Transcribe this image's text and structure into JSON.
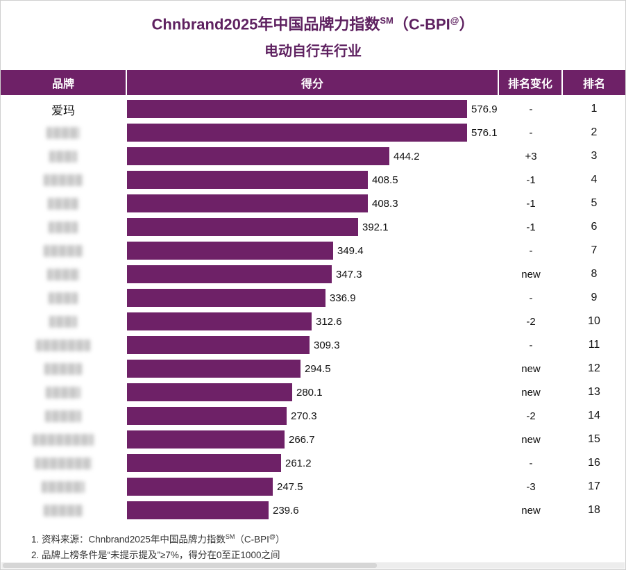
{
  "page": {
    "title_line1": {
      "text": "Chnbrand2025年中国品牌力指数",
      "sup1": "SM",
      "mid": "（C-BPI",
      "sup2": "@",
      "end": "）"
    },
    "title_line2": "电动自行车行业"
  },
  "table_headers": {
    "brand": "品牌",
    "score": "得分",
    "rank_change": "排名变化",
    "rank": "排名"
  },
  "chart_data": {
    "type": "bar",
    "orientation": "horizontal",
    "title": "Chnbrand2025年中国品牌力指数SM（C-BPI@） 电动自行车行业",
    "value_label": "得分",
    "xlim": [
      0,
      650
    ],
    "bar_color": "#6e2167",
    "rows": [
      {
        "brand": "爱玛",
        "redacted": false,
        "redacted_width": 0,
        "score": 576.9,
        "rank_change": "-",
        "rank": 1
      },
      {
        "brand": "",
        "redacted": true,
        "redacted_width": 48,
        "score": 576.1,
        "rank_change": "-",
        "rank": 2
      },
      {
        "brand": "",
        "redacted": true,
        "redacted_width": 40,
        "score": 444.2,
        "rank_change": "+3",
        "rank": 3
      },
      {
        "brand": "",
        "redacted": true,
        "redacted_width": 56,
        "score": 408.5,
        "rank_change": "-1",
        "rank": 4
      },
      {
        "brand": "",
        "redacted": true,
        "redacted_width": 44,
        "score": 408.3,
        "rank_change": "-1",
        "rank": 5
      },
      {
        "brand": "",
        "redacted": true,
        "redacted_width": 42,
        "score": 392.1,
        "rank_change": "-1",
        "rank": 6
      },
      {
        "brand": "",
        "redacted": true,
        "redacted_width": 56,
        "score": 349.4,
        "rank_change": "-",
        "rank": 7
      },
      {
        "brand": "",
        "redacted": true,
        "redacted_width": 46,
        "score": 347.3,
        "rank_change": "new",
        "rank": 8
      },
      {
        "brand": "",
        "redacted": true,
        "redacted_width": 42,
        "score": 336.9,
        "rank_change": "-",
        "rank": 9
      },
      {
        "brand": "",
        "redacted": true,
        "redacted_width": 40,
        "score": 312.6,
        "rank_change": "-2",
        "rank": 10
      },
      {
        "brand": "",
        "redacted": true,
        "redacted_width": 78,
        "score": 309.3,
        "rank_change": "-",
        "rank": 11
      },
      {
        "brand": "",
        "redacted": true,
        "redacted_width": 54,
        "score": 294.5,
        "rank_change": "new",
        "rank": 12
      },
      {
        "brand": "",
        "redacted": true,
        "redacted_width": 50,
        "score": 280.1,
        "rank_change": "new",
        "rank": 13
      },
      {
        "brand": "",
        "redacted": true,
        "redacted_width": 52,
        "score": 270.3,
        "rank_change": "-2",
        "rank": 14
      },
      {
        "brand": "",
        "redacted": true,
        "redacted_width": 88,
        "score": 266.7,
        "rank_change": "new",
        "rank": 15
      },
      {
        "brand": "",
        "redacted": true,
        "redacted_width": 82,
        "score": 261.2,
        "rank_change": "-",
        "rank": 16
      },
      {
        "brand": "",
        "redacted": true,
        "redacted_width": 62,
        "score": 247.5,
        "rank_change": "-3",
        "rank": 17
      },
      {
        "brand": "",
        "redacted": true,
        "redacted_width": 56,
        "score": 239.6,
        "rank_change": "new",
        "rank": 18
      }
    ]
  },
  "footnotes": {
    "line1": {
      "text": "1. 资料来源：Chnbrand2025年中国品牌力指数",
      "sup1": "SM",
      "mid": "（C-BPI",
      "sup2": "@",
      "end": "）"
    },
    "line2": "2. 品牌上榜条件是“未提示提及”≥7%，得分在0至正1000之间"
  },
  "colors": {
    "accent": "#6e2167",
    "title_text": "#5e2160",
    "body_text": "#1a1a1a"
  }
}
